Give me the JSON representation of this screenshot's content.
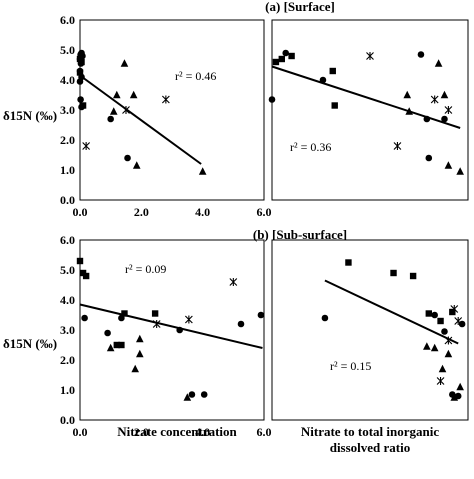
{
  "y_axis_label": "δ15N (‰)",
  "chart_data": [
    {
      "type": "scatter",
      "title": "(a) [Surface]",
      "xlabel": "",
      "ylabel": "δ15N (‰)",
      "xlim": [
        0,
        6
      ],
      "ylim": [
        0,
        6
      ],
      "x_ticks": [
        "0.0",
        "2.0",
        "4.0",
        "6.0"
      ],
      "y_ticks": [
        "0.0",
        "1.0",
        "2.0",
        "3.0",
        "4.0",
        "5.0",
        "6.0"
      ],
      "r2_label": "r² = 0.46",
      "trendline": {
        "x": [
          0.0,
          3.95
        ],
        "y": [
          4.15,
          1.2
        ]
      },
      "series": [
        {
          "marker": "circle",
          "points": [
            [
              0.05,
              4.9
            ],
            [
              0.02,
              4.85
            ],
            [
              0.08,
              4.8
            ],
            [
              0.0,
              4.7
            ],
            [
              0.03,
              4.55
            ],
            [
              0.0,
              4.3
            ],
            [
              0.05,
              4.1
            ],
            [
              0.0,
              3.95
            ],
            [
              0.02,
              3.35
            ],
            [
              0.05,
              3.1
            ],
            [
              1.55,
              1.4
            ],
            [
              1.0,
              2.7
            ]
          ]
        },
        {
          "marker": "square",
          "points": [
            [
              0.0,
              4.7
            ],
            [
              0.05,
              4.6
            ],
            [
              0.0,
              4.25
            ],
            [
              0.1,
              3.15
            ]
          ]
        },
        {
          "marker": "triangle",
          "points": [
            [
              1.2,
              3.5
            ],
            [
              1.1,
              2.95
            ],
            [
              1.45,
              4.55
            ],
            [
              1.75,
              3.5
            ],
            [
              1.85,
              1.15
            ],
            [
              4.0,
              0.95
            ]
          ]
        },
        {
          "marker": "star",
          "points": [
            [
              0.2,
              1.8
            ],
            [
              1.5,
              3.0
            ],
            [
              2.8,
              3.35
            ]
          ]
        }
      ]
    },
    {
      "type": "scatter",
      "title": "",
      "xlabel": "",
      "ylabel": "",
      "xlim": [
        0,
        1
      ],
      "ylim": [
        0,
        6
      ],
      "x_ticks": [],
      "y_ticks": [],
      "r2_label": "r² = 0.36",
      "trendline": {
        "x": [
          0.0,
          0.96
        ],
        "y": [
          4.45,
          2.4
        ]
      },
      "series": [
        {
          "marker": "circle",
          "points": [
            [
              0.0,
              3.35
            ],
            [
              0.07,
              4.9
            ],
            [
              0.26,
              4.0
            ],
            [
              0.76,
              4.85
            ],
            [
              0.79,
              2.7
            ],
            [
              0.8,
              1.4
            ],
            [
              0.88,
              2.7
            ]
          ]
        },
        {
          "marker": "square",
          "points": [
            [
              0.02,
              4.6
            ],
            [
              0.05,
              4.7
            ],
            [
              0.1,
              4.8
            ],
            [
              0.31,
              4.3
            ],
            [
              0.32,
              3.15
            ]
          ]
        },
        {
          "marker": "triangle",
          "points": [
            [
              0.69,
              3.5
            ],
            [
              0.7,
              2.95
            ],
            [
              0.85,
              4.55
            ],
            [
              0.88,
              3.5
            ],
            [
              0.9,
              1.15
            ],
            [
              0.96,
              0.95
            ]
          ]
        },
        {
          "marker": "star",
          "points": [
            [
              0.5,
              4.8
            ],
            [
              0.64,
              1.8
            ],
            [
              0.83,
              3.35
            ],
            [
              0.9,
              3.0
            ]
          ]
        }
      ]
    },
    {
      "type": "scatter",
      "title": "(b) [Sub-surface]",
      "xlabel": "Nitrate concentration",
      "ylabel": "δ15N (‰)",
      "xlim": [
        0,
        6
      ],
      "ylim": [
        0,
        6
      ],
      "x_ticks": [
        "0.0",
        "2.0",
        "4.0",
        "6.0"
      ],
      "y_ticks": [
        "0.0",
        "1.0",
        "2.0",
        "3.0",
        "4.0",
        "5.0",
        "6.0"
      ],
      "r2_label": "r² = 0.09",
      "trendline": {
        "x": [
          0.0,
          5.95
        ],
        "y": [
          3.85,
          2.4
        ]
      },
      "series": [
        {
          "marker": "circle",
          "points": [
            [
              0.15,
              3.4
            ],
            [
              0.9,
              2.9
            ],
            [
              1.35,
              3.4
            ],
            [
              3.25,
              3.0
            ],
            [
              3.65,
              0.85
            ],
            [
              4.05,
              0.85
            ],
            [
              5.25,
              3.2
            ],
            [
              5.9,
              3.5
            ]
          ]
        },
        {
          "marker": "square",
          "points": [
            [
              0.0,
              5.3
            ],
            [
              0.1,
              4.9
            ],
            [
              0.2,
              4.8
            ],
            [
              1.2,
              2.5
            ],
            [
              1.35,
              2.5
            ],
            [
              1.45,
              3.55
            ],
            [
              2.45,
              3.55
            ]
          ]
        },
        {
          "marker": "triangle",
          "points": [
            [
              1.0,
              2.4
            ],
            [
              1.8,
              1.7
            ],
            [
              1.95,
              2.2
            ],
            [
              1.95,
              2.7
            ],
            [
              3.5,
              0.75
            ]
          ]
        },
        {
          "marker": "star",
          "points": [
            [
              2.5,
              3.2
            ],
            [
              3.55,
              3.35
            ],
            [
              5.0,
              4.6
            ]
          ]
        }
      ]
    },
    {
      "type": "scatter",
      "title": "",
      "xlabel": "Nitrate to total inorganic dissolved ratio",
      "ylabel": "",
      "xlim": [
        0,
        1
      ],
      "ylim": [
        0,
        6
      ],
      "x_ticks": [],
      "y_ticks": [],
      "r2_label": "r² = 0.15",
      "trendline": {
        "x": [
          0.27,
          0.95
        ],
        "y": [
          4.65,
          2.55
        ]
      },
      "series": [
        {
          "marker": "circle",
          "points": [
            [
              0.27,
              3.4
            ],
            [
              0.83,
              3.5
            ],
            [
              0.88,
              2.95
            ],
            [
              0.92,
              0.85
            ],
            [
              0.95,
              0.8
            ],
            [
              0.97,
              3.2
            ]
          ]
        },
        {
          "marker": "square",
          "points": [
            [
              0.39,
              5.25
            ],
            [
              0.62,
              4.9
            ],
            [
              0.72,
              4.8
            ],
            [
              0.8,
              3.55
            ],
            [
              0.86,
              3.3
            ],
            [
              0.92,
              3.6
            ]
          ]
        },
        {
          "marker": "triangle",
          "points": [
            [
              0.79,
              2.45
            ],
            [
              0.83,
              2.4
            ],
            [
              0.87,
              1.7
            ],
            [
              0.9,
              2.2
            ],
            [
              0.93,
              0.75
            ],
            [
              0.96,
              1.1
            ]
          ]
        },
        {
          "marker": "star",
          "points": [
            [
              0.86,
              1.3
            ],
            [
              0.9,
              2.65
            ],
            [
              0.93,
              3.7
            ],
            [
              0.95,
              3.3
            ]
          ]
        }
      ]
    }
  ]
}
